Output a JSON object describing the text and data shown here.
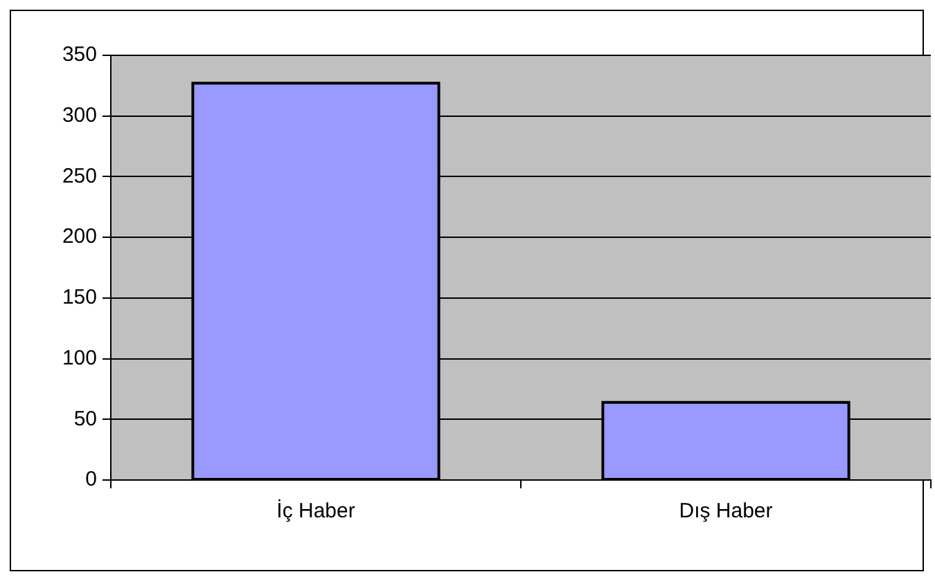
{
  "chart_data": {
    "type": "bar",
    "categories": [
      "İç Haber",
      "Dış Haber"
    ],
    "values": [
      327,
      64
    ],
    "color": "#9999ff",
    "ylim": [
      0,
      350
    ],
    "yticks": [
      0,
      50,
      100,
      150,
      200,
      250,
      300,
      350
    ],
    "grid": "y",
    "legend": false
  }
}
